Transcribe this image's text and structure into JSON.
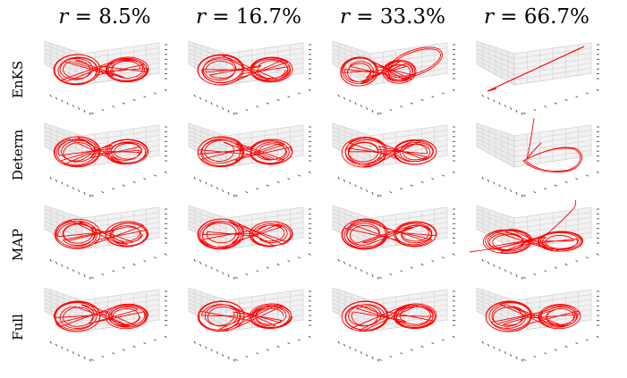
{
  "figure": {
    "columns": [
      {
        "prefix": "r = ",
        "value": "8.5%"
      },
      {
        "prefix": "r = ",
        "value": "16.7%"
      },
      {
        "prefix": "r = ",
        "value": "33.3%"
      },
      {
        "prefix": "r = ",
        "value": "66.7%"
      }
    ],
    "rows": [
      "EnKS",
      "Determ",
      "MAP",
      "Full"
    ]
  },
  "chart_data": {
    "type": "line",
    "plot": "3d-trajectory-grid",
    "line_color": "#ff0000",
    "column_labels": [
      "r = 8.5%",
      "r = 16.7%",
      "r = 33.3%",
      "r = 66.7%"
    ],
    "row_labels": [
      "EnKS",
      "Determ",
      "MAP",
      "Full"
    ],
    "panels": [
      [
        {
          "shape": "butterfly"
        },
        {
          "shape": "butterfly"
        },
        {
          "shape": "butterfly-collapsed-right"
        },
        {
          "shape": "straight-line"
        }
      ],
      [
        {
          "shape": "butterfly"
        },
        {
          "shape": "butterfly"
        },
        {
          "shape": "butterfly"
        },
        {
          "shape": "single-loop-with-spike"
        }
      ],
      [
        {
          "shape": "butterfly"
        },
        {
          "shape": "butterfly"
        },
        {
          "shape": "butterfly"
        },
        {
          "shape": "butterfly-with-spike"
        }
      ],
      [
        {
          "shape": "butterfly"
        },
        {
          "shape": "butterfly"
        },
        {
          "shape": "butterfly"
        },
        {
          "shape": "butterfly"
        }
      ]
    ]
  }
}
